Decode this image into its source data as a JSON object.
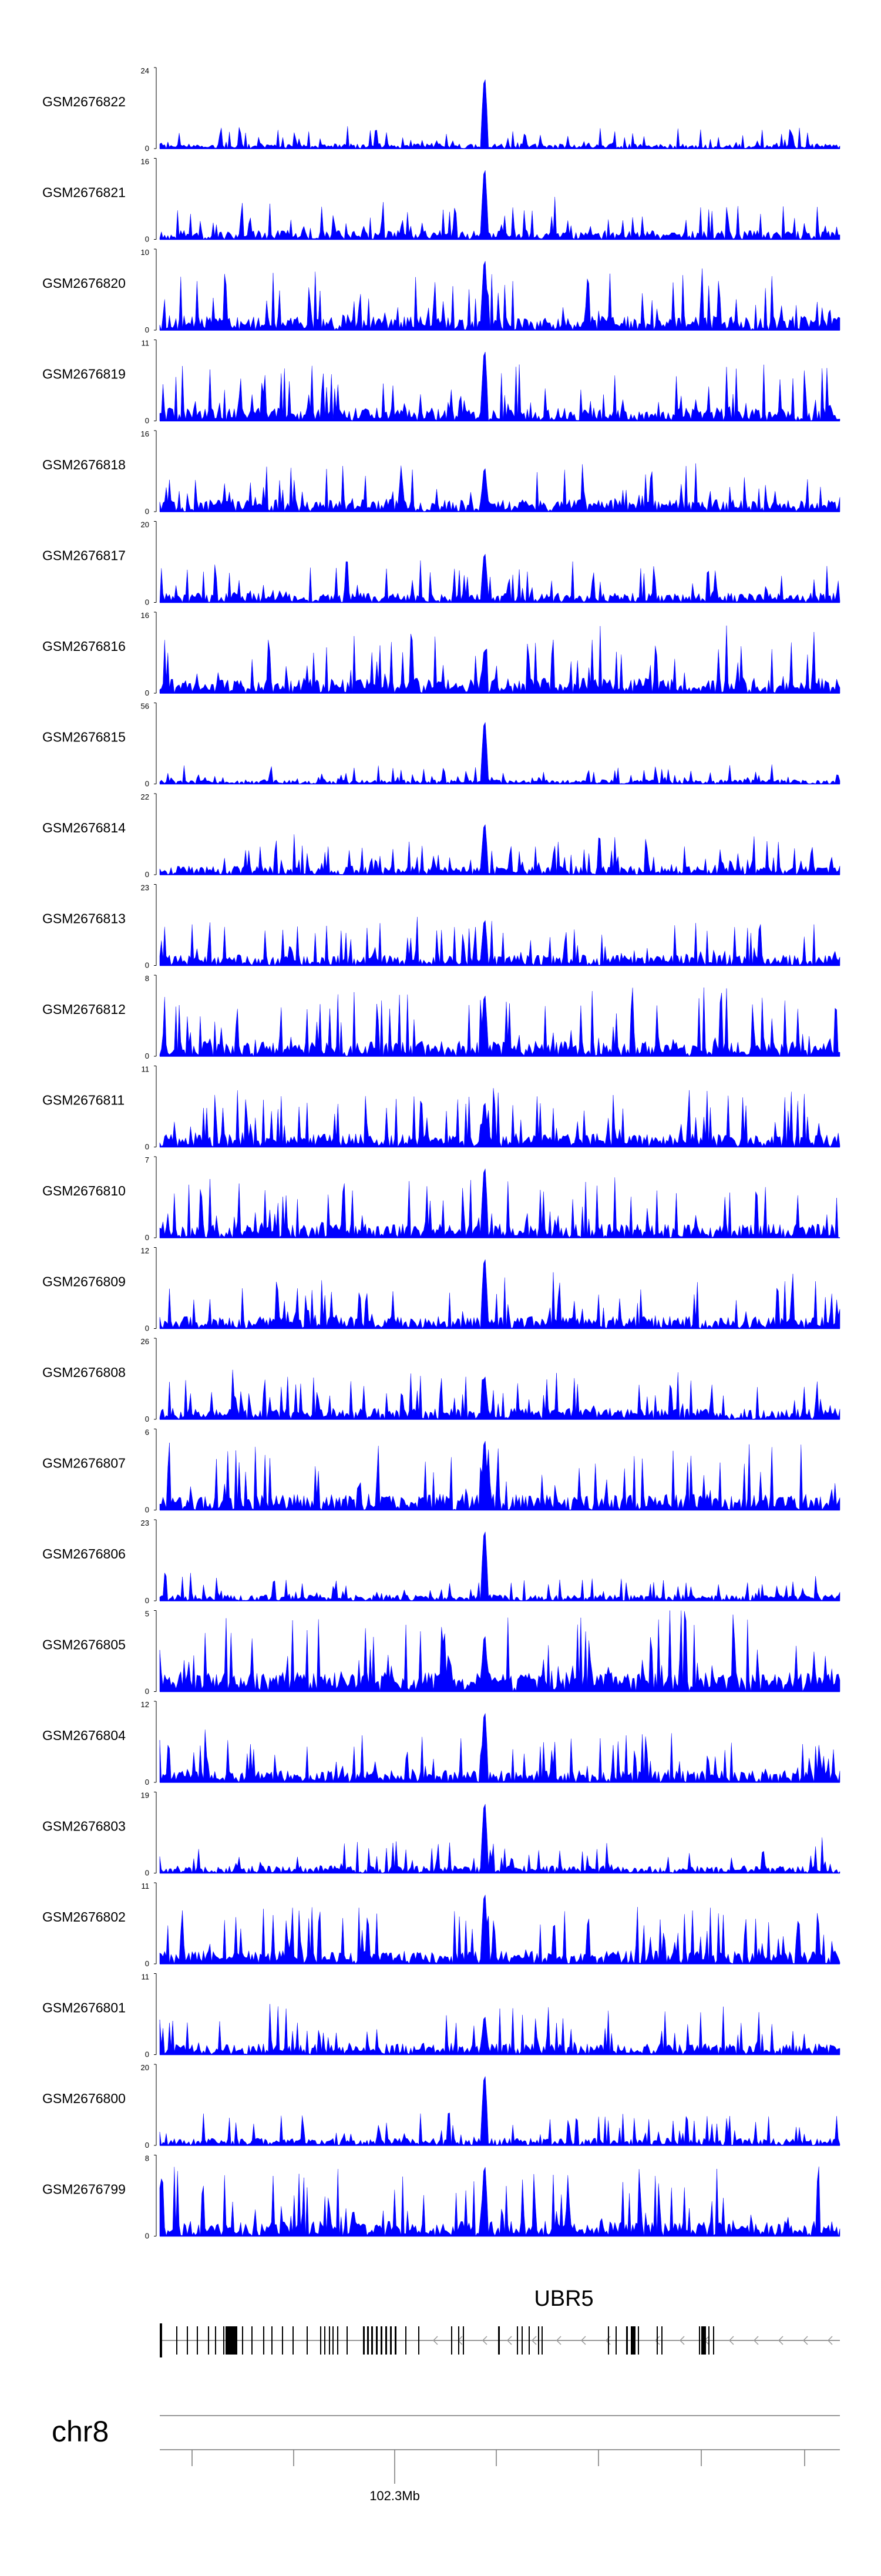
{
  "chart_data": {
    "type": "area",
    "description_free": true,
    "color": "#0000ff",
    "chromosome": "chr8",
    "x_axis": {
      "labels": [
        "102.3Mb"
      ]
    },
    "gene": {
      "name": "UBR5",
      "strand": "minus"
    },
    "tracks": [
      {
        "name": "GSM2676822",
        "ymax": "24",
        "ymin": "0",
        "peak": 24,
        "baseline": 2.5,
        "seed": 11
      },
      {
        "name": "GSM2676821",
        "ymax": "16",
        "ymin": "0",
        "peak": 16,
        "baseline": 3,
        "seed": 12
      },
      {
        "name": "GSM2676820",
        "ymax": "10",
        "ymin": "0",
        "peak": 10,
        "baseline": 3,
        "seed": 13
      },
      {
        "name": "GSM2676819",
        "ymax": "11",
        "ymin": "0",
        "peak": 11,
        "baseline": 3,
        "seed": 14
      },
      {
        "name": "GSM2676818",
        "ymax": "16",
        "ymin": "0",
        "peak": 10,
        "baseline": 4,
        "seed": 15
      },
      {
        "name": "GSM2676817",
        "ymax": "20",
        "ymin": "0",
        "peak": 14,
        "baseline": 4,
        "seed": 16
      },
      {
        "name": "GSM2676816",
        "ymax": "16",
        "ymin": "0",
        "peak": 10,
        "baseline": 5,
        "seed": 17
      },
      {
        "name": "GSM2676815",
        "ymax": "56",
        "ymin": "0",
        "peak": 50,
        "baseline": 5,
        "seed": 18
      },
      {
        "name": "GSM2676814",
        "ymax": "22",
        "ymin": "0",
        "peak": 16,
        "baseline": 4,
        "seed": 19
      },
      {
        "name": "GSM2676813",
        "ymax": "23",
        "ymin": "0",
        "peak": 15,
        "baseline": 5,
        "seed": 20
      },
      {
        "name": "GSM2676812",
        "ymax": "8",
        "ymin": "0",
        "peak": 7,
        "baseline": 2.5,
        "seed": 21
      },
      {
        "name": "GSM2676811",
        "ymax": "11",
        "ymin": "0",
        "peak": 7,
        "baseline": 3,
        "seed": 22
      },
      {
        "name": "GSM2676810",
        "ymax": "7",
        "ymin": "0",
        "peak": 7,
        "baseline": 2,
        "seed": 23
      },
      {
        "name": "GSM2676809",
        "ymax": "12",
        "ymin": "0",
        "peak": 12,
        "baseline": 3,
        "seed": 24
      },
      {
        "name": "GSM2676808",
        "ymax": "26",
        "ymin": "0",
        "peak": 16,
        "baseline": 6,
        "seed": 25
      },
      {
        "name": "GSM2676807",
        "ymax": "6",
        "ymin": "0",
        "peak": 6,
        "baseline": 2,
        "seed": 26
      },
      {
        "name": "GSM2676806",
        "ymax": "23",
        "ymin": "0",
        "peak": 23,
        "baseline": 3,
        "seed": 27
      },
      {
        "name": "GSM2676805",
        "ymax": "5",
        "ymin": "0",
        "peak": 4,
        "baseline": 2,
        "seed": 28
      },
      {
        "name": "GSM2676804",
        "ymax": "12",
        "ymin": "0",
        "peak": 12,
        "baseline": 3,
        "seed": 29
      },
      {
        "name": "GSM2676803",
        "ymax": "19",
        "ymin": "0",
        "peak": 19,
        "baseline": 3,
        "seed": 30
      },
      {
        "name": "GSM2676802",
        "ymax": "11",
        "ymin": "0",
        "peak": 11,
        "baseline": 3,
        "seed": 31
      },
      {
        "name": "GSM2676801",
        "ymax": "11",
        "ymin": "0",
        "peak": 6,
        "baseline": 2.5,
        "seed": 32
      },
      {
        "name": "GSM2676800",
        "ymax": "20",
        "ymin": "0",
        "peak": 20,
        "baseline": 3,
        "seed": 33
      },
      {
        "name": "GSM2676799",
        "ymax": "8",
        "ymin": "0",
        "peak": 8,
        "baseline": 2.5,
        "seed": 34
      }
    ]
  }
}
